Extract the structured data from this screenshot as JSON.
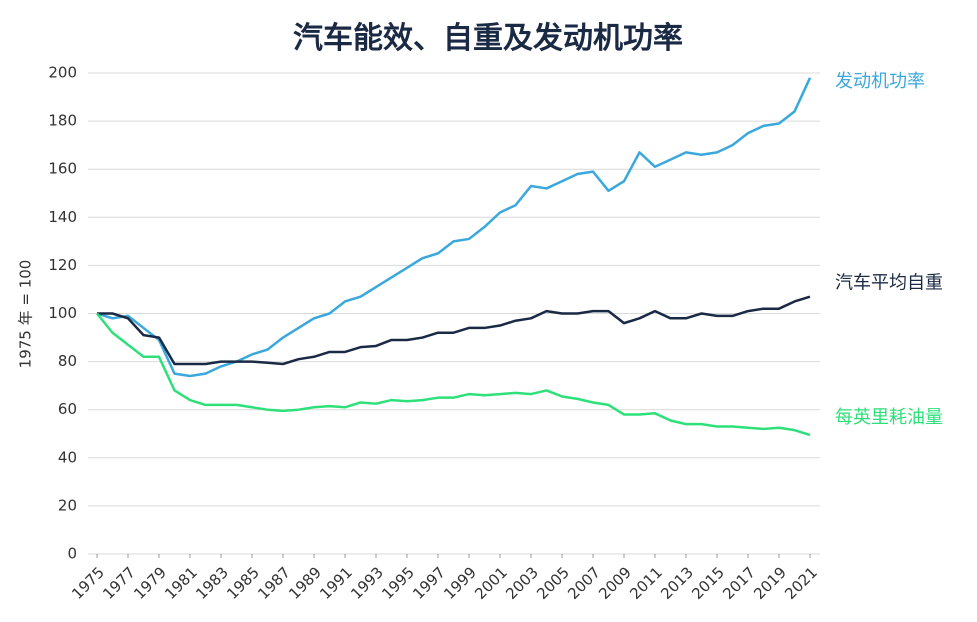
{
  "chart_data": {
    "type": "line",
    "title": "汽车能效、自重及发动机功率",
    "y_label": "1975 年 = 100",
    "x": [
      1975,
      1976,
      1977,
      1978,
      1979,
      1980,
      1981,
      1982,
      1983,
      1984,
      1985,
      1986,
      1987,
      1988,
      1989,
      1990,
      1991,
      1992,
      1993,
      1994,
      1995,
      1996,
      1997,
      1998,
      1999,
      2000,
      2001,
      2002,
      2003,
      2004,
      2005,
      2006,
      2007,
      2008,
      2009,
      2010,
      2011,
      2012,
      2013,
      2014,
      2015,
      2016,
      2017,
      2018,
      2019,
      2020,
      2021
    ],
    "xlim": [
      1975,
      2021
    ],
    "xticks": [
      1975,
      1977,
      1979,
      1981,
      1983,
      1985,
      1987,
      1989,
      1991,
      1993,
      1995,
      1997,
      1999,
      2001,
      2003,
      2005,
      2007,
      2009,
      2011,
      2013,
      2015,
      2017,
      2019,
      2021
    ],
    "ylim": [
      0,
      200
    ],
    "yticks": [
      0,
      20,
      40,
      60,
      80,
      100,
      120,
      140,
      160,
      180,
      200
    ],
    "grid": true,
    "series": [
      {
        "name": "发动机功率",
        "color": "#3aa8dc",
        "values": [
          100,
          98,
          99,
          94,
          89,
          75,
          74,
          75,
          78,
          80,
          83,
          85,
          90,
          94,
          98,
          100,
          105,
          107,
          111,
          115,
          119,
          123,
          125,
          130,
          131,
          136,
          142,
          145,
          153,
          152,
          155,
          158,
          159,
          151,
          155,
          167,
          161,
          164,
          167,
          166,
          167,
          170,
          175,
          178,
          179,
          184,
          198
        ]
      },
      {
        "name": "汽车平均自重",
        "color": "#1b2a44",
        "values": [
          100,
          100,
          98,
          91,
          90,
          79,
          79,
          79,
          80,
          80,
          80,
          79.5,
          79,
          81,
          82,
          84,
          84,
          86,
          86.5,
          89,
          89,
          90,
          92,
          92,
          94,
          94,
          95,
          97,
          98,
          101,
          100,
          100,
          101,
          101,
          96,
          98,
          101,
          98,
          98,
          100,
          99,
          99,
          101,
          102,
          102,
          105,
          107
        ]
      },
      {
        "name": "每英里耗油量",
        "color": "#2ee07a",
        "values": [
          100,
          92,
          87,
          82,
          82,
          68,
          64,
          62,
          62,
          62,
          61,
          60,
          59.5,
          60,
          61,
          61.5,
          61,
          63,
          62.5,
          64,
          63.5,
          64,
          65,
          65,
          66.5,
          66,
          66.5,
          67,
          66.5,
          68,
          65.5,
          64.5,
          63,
          62,
          58,
          58,
          58.5,
          55.5,
          54,
          54,
          53,
          53,
          52.5,
          52,
          52.5,
          51.5,
          49.5
        ]
      }
    ]
  }
}
